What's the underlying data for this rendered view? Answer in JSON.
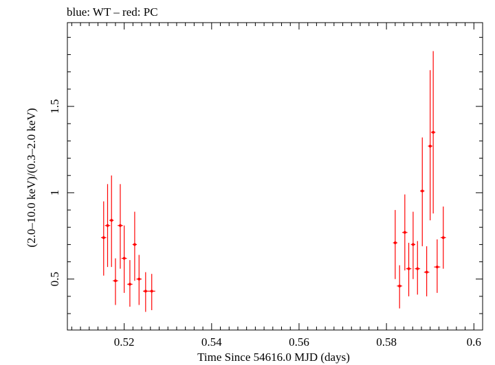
{
  "chart_data": {
    "type": "scatter",
    "title": "blue: WT – red: PC",
    "xlabel": "Time Since 54616.0 MJD (days)",
    "ylabel": "(2.0–10.0 keV)/(0.3–2.0 keV)",
    "xlim": [
      0.507,
      0.602
    ],
    "ylim": [
      0.205,
      1.985
    ],
    "x_major_ticks": [
      0.52,
      0.54,
      0.56,
      0.58,
      0.6
    ],
    "x_tick_labels": [
      "0.52",
      "0.54",
      "0.56",
      "0.58",
      "0.6"
    ],
    "x_minor_step": 0.002,
    "y_major_ticks": [
      0.5,
      1.0,
      1.5
    ],
    "y_tick_labels": [
      "0.5",
      "1",
      "1.5"
    ],
    "y_minor_step": 0.1,
    "grid": false,
    "series": [
      {
        "name": "PC",
        "color": "#ff0000",
        "points": [
          {
            "x": 0.5153,
            "y": 0.74,
            "xerr": 0.0006,
            "ylo": 0.52,
            "yhi": 0.95
          },
          {
            "x": 0.5162,
            "y": 0.81,
            "xerr": 0.0006,
            "ylo": 0.57,
            "yhi": 1.05
          },
          {
            "x": 0.5171,
            "y": 0.84,
            "xerr": 0.0005,
            "ylo": 0.57,
            "yhi": 1.1
          },
          {
            "x": 0.518,
            "y": 0.49,
            "xerr": 0.0006,
            "ylo": 0.35,
            "yhi": 0.62
          },
          {
            "x": 0.5191,
            "y": 0.81,
            "xerr": 0.0006,
            "ylo": 0.56,
            "yhi": 1.05
          },
          {
            "x": 0.52,
            "y": 0.62,
            "xerr": 0.0006,
            "ylo": 0.42,
            "yhi": 0.81
          },
          {
            "x": 0.5213,
            "y": 0.47,
            "xerr": 0.0006,
            "ylo": 0.34,
            "yhi": 0.61
          },
          {
            "x": 0.5224,
            "y": 0.7,
            "xerr": 0.0005,
            "ylo": 0.49,
            "yhi": 0.89
          },
          {
            "x": 0.5234,
            "y": 0.5,
            "xerr": 0.0006,
            "ylo": 0.35,
            "yhi": 0.64
          },
          {
            "x": 0.5249,
            "y": 0.43,
            "xerr": 0.0006,
            "ylo": 0.31,
            "yhi": 0.54
          },
          {
            "x": 0.5263,
            "y": 0.43,
            "xerr": 0.0008,
            "ylo": 0.32,
            "yhi": 0.53
          },
          {
            "x": 0.582,
            "y": 0.71,
            "xerr": 0.0005,
            "ylo": 0.5,
            "yhi": 0.9
          },
          {
            "x": 0.583,
            "y": 0.46,
            "xerr": 0.0006,
            "ylo": 0.33,
            "yhi": 0.58
          },
          {
            "x": 0.5842,
            "y": 0.77,
            "xerr": 0.0006,
            "ylo": 0.55,
            "yhi": 0.99
          },
          {
            "x": 0.5851,
            "y": 0.56,
            "xerr": 0.0006,
            "ylo": 0.4,
            "yhi": 0.71
          },
          {
            "x": 0.5861,
            "y": 0.7,
            "xerr": 0.0005,
            "ylo": 0.5,
            "yhi": 0.89
          },
          {
            "x": 0.5871,
            "y": 0.56,
            "xerr": 0.0006,
            "ylo": 0.41,
            "yhi": 0.72
          },
          {
            "x": 0.5882,
            "y": 1.01,
            "xerr": 0.0005,
            "ylo": 0.69,
            "yhi": 1.32
          },
          {
            "x": 0.5892,
            "y": 0.54,
            "xerr": 0.0006,
            "ylo": 0.4,
            "yhi": 0.69
          },
          {
            "x": 0.59,
            "y": 1.27,
            "xerr": 0.0005,
            "ylo": 0.84,
            "yhi": 1.71
          },
          {
            "x": 0.5907,
            "y": 1.35,
            "xerr": 0.0005,
            "ylo": 0.88,
            "yhi": 1.82
          },
          {
            "x": 0.5916,
            "y": 0.57,
            "xerr": 0.0007,
            "ylo": 0.42,
            "yhi": 0.73
          },
          {
            "x": 0.593,
            "y": 0.74,
            "xerr": 0.0006,
            "ylo": 0.56,
            "yhi": 0.92
          }
        ]
      }
    ]
  }
}
